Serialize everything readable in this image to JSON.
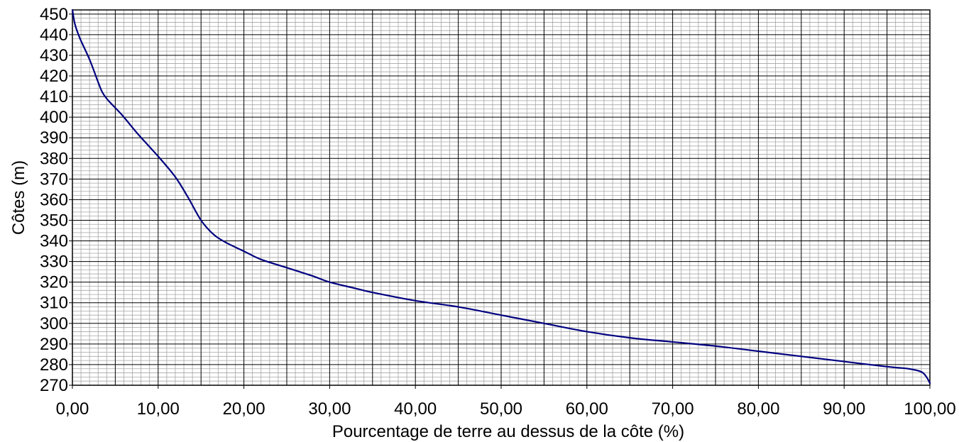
{
  "chart_data": {
    "type": "line",
    "title": "",
    "xlabel": "Pourcentage de terre au dessus de la côte (%)",
    "ylabel": "Côtes (m)",
    "xlim": [
      0,
      100
    ],
    "ylim": [
      270,
      452
    ],
    "x_ticks": [
      0,
      10,
      20,
      30,
      40,
      50,
      60,
      70,
      80,
      90,
      100
    ],
    "x_tick_labels": [
      "0,00",
      "10,00",
      "20,00",
      "30,00",
      "40,00",
      "50,00",
      "60,00",
      "70,00",
      "80,00",
      "90,00",
      "100,00"
    ],
    "y_ticks": [
      270,
      280,
      290,
      300,
      310,
      320,
      330,
      340,
      350,
      360,
      370,
      380,
      390,
      400,
      410,
      420,
      430,
      440,
      450
    ],
    "y_tick_labels": [
      "270",
      "280",
      "290",
      "300",
      "310",
      "320",
      "330",
      "340",
      "350",
      "360",
      "370",
      "380",
      "390",
      "400",
      "410",
      "420",
      "430",
      "440",
      "450"
    ],
    "grid": {
      "x_major_step": 5,
      "x_minor_step": 1,
      "y_major_step": 10,
      "y_minor_step": 2
    },
    "colors": {
      "line": "#000080",
      "grid_major": "#000000",
      "grid_minor": "#a6a6a6"
    },
    "series": [
      {
        "x": [
          0,
          0.3,
          0.9,
          2.0,
          3.0,
          3.5,
          4.2,
          5.8,
          7.6,
          10.0,
          12.0,
          13.5,
          15.0,
          16.5,
          18.0,
          20.0,
          22.0,
          25.0,
          28.0,
          30.0,
          33.0,
          35.0,
          40.0,
          45.0,
          50.0,
          55.0,
          60.0,
          65.0,
          70.0,
          75.0,
          80.0,
          85.0,
          90.0,
          95.0,
          97.5,
          99.0,
          99.6,
          100.0
        ],
        "y": [
          452,
          445,
          438,
          428,
          417,
          412,
          408,
          401,
          392,
          381,
          371,
          361,
          350,
          343,
          339,
          335,
          331,
          327,
          323,
          320,
          317,
          315,
          311,
          308,
          304,
          300,
          296,
          293,
          291,
          289,
          286.5,
          284,
          281.5,
          279,
          278,
          276.5,
          274,
          271
        ]
      }
    ]
  }
}
